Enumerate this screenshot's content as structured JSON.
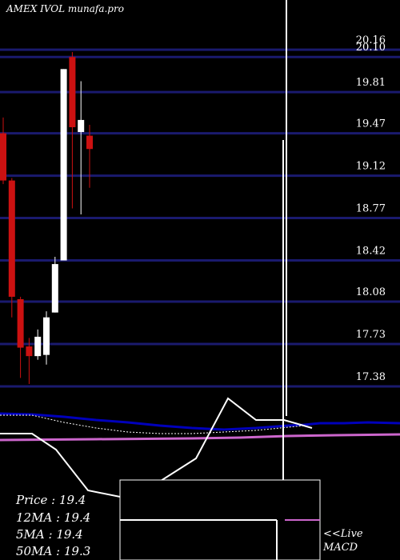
{
  "header": {
    "title": "AMEX IVOL munafa.pro"
  },
  "stats": {
    "price": "Price   : 19.4",
    "ma12": "12MA : 19.4",
    "ma5": "5MA : 19.4",
    "ma50": "50MA : 19.3"
  },
  "macd_box": {
    "live": "<<Live",
    "label": "MACD"
  },
  "colors": {
    "background": "#000000",
    "grid": "#1a1a6e",
    "bull": "#ffffff",
    "bear": "#cc1111",
    "ma_blue": "#0000bb",
    "ma_pink": "#cc66cc",
    "indicator": "#ffffff"
  },
  "chart_data": {
    "type": "candlestick",
    "title": "AMEX IVOL munafa.pro",
    "price_levels": [
      20.16,
      20.1,
      19.81,
      19.47,
      19.12,
      18.77,
      18.42,
      18.08,
      17.73,
      17.38
    ],
    "ylim": [
      17.2,
      20.2
    ],
    "candles": [
      {
        "o": 19.47,
        "h": 19.6,
        "l": 19.05,
        "c": 19.08
      },
      {
        "o": 19.08,
        "h": 19.1,
        "l": 17.95,
        "c": 18.12
      },
      {
        "o": 18.1,
        "h": 18.12,
        "l": 17.45,
        "c": 17.7
      },
      {
        "o": 17.71,
        "h": 17.78,
        "l": 17.4,
        "c": 17.63
      },
      {
        "o": 17.63,
        "h": 17.85,
        "l": 17.6,
        "c": 17.79
      },
      {
        "o": 17.64,
        "h": 18.0,
        "l": 17.56,
        "c": 17.95
      },
      {
        "o": 17.99,
        "h": 18.45,
        "l": 17.99,
        "c": 18.39
      },
      {
        "o": 18.42,
        "h": 20.0,
        "l": 18.42,
        "c": 20.0
      },
      {
        "o": 20.1,
        "h": 20.14,
        "l": 18.85,
        "c": 19.52
      },
      {
        "o": 19.48,
        "h": 19.9,
        "l": 18.8,
        "c": 19.58
      },
      {
        "o": 19.45,
        "h": 19.54,
        "l": 19.02,
        "c": 19.34
      }
    ]
  }
}
